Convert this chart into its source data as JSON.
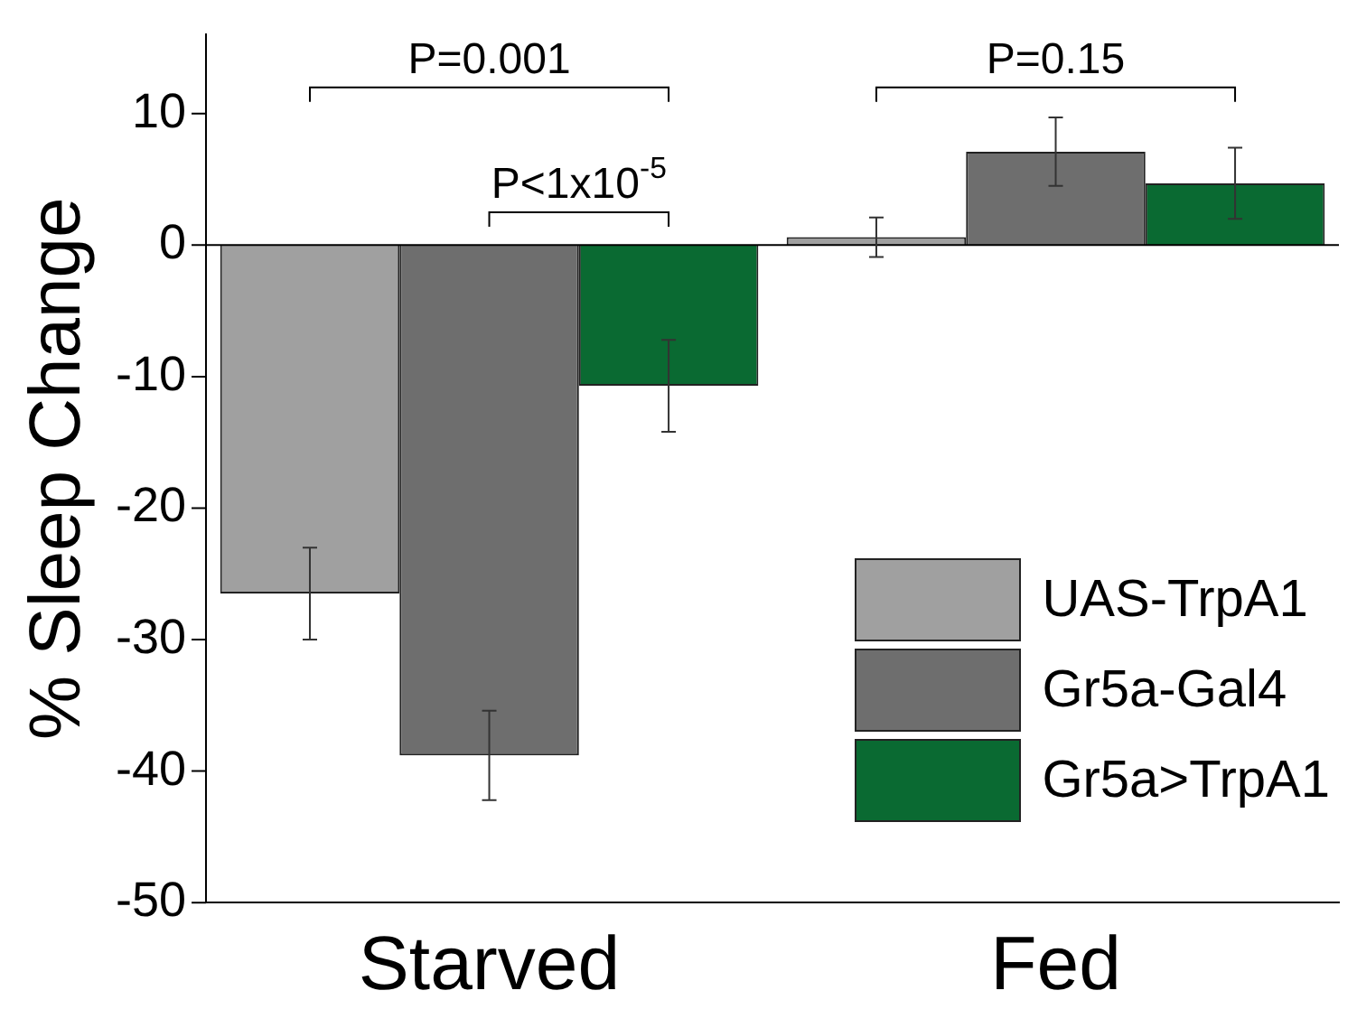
{
  "chart_data": {
    "type": "bar",
    "ylabel": "% Sleep Change",
    "categories": [
      "Starved",
      "Fed"
    ],
    "series": [
      {
        "name": "UAS-TrpA1",
        "color": "#a0a0a0",
        "values": [
          -26.5,
          0.6
        ],
        "errors": [
          3.5,
          1.5
        ]
      },
      {
        "name": "Gr5a-Gal4",
        "color": "#6e6e6e",
        "values": [
          -38.8,
          7.1
        ],
        "errors": [
          3.4,
          2.6
        ]
      },
      {
        "name": "Gr5a>TrpA1",
        "color": "#0a6a32",
        "values": [
          -10.7,
          4.7
        ],
        "errors": [
          3.5,
          2.7
        ]
      }
    ],
    "ylim": [
      -50,
      16
    ],
    "yticks": [
      -50,
      -40,
      -30,
      -20,
      -10,
      0,
      10
    ],
    "grid": false,
    "ref_lines": [
      {
        "axis": "y",
        "value": 0
      }
    ],
    "legend": "bottom right",
    "annotations": [
      "P=0.001",
      "P<1x10$^{-5}$",
      "P=0.15"
    ]
  }
}
